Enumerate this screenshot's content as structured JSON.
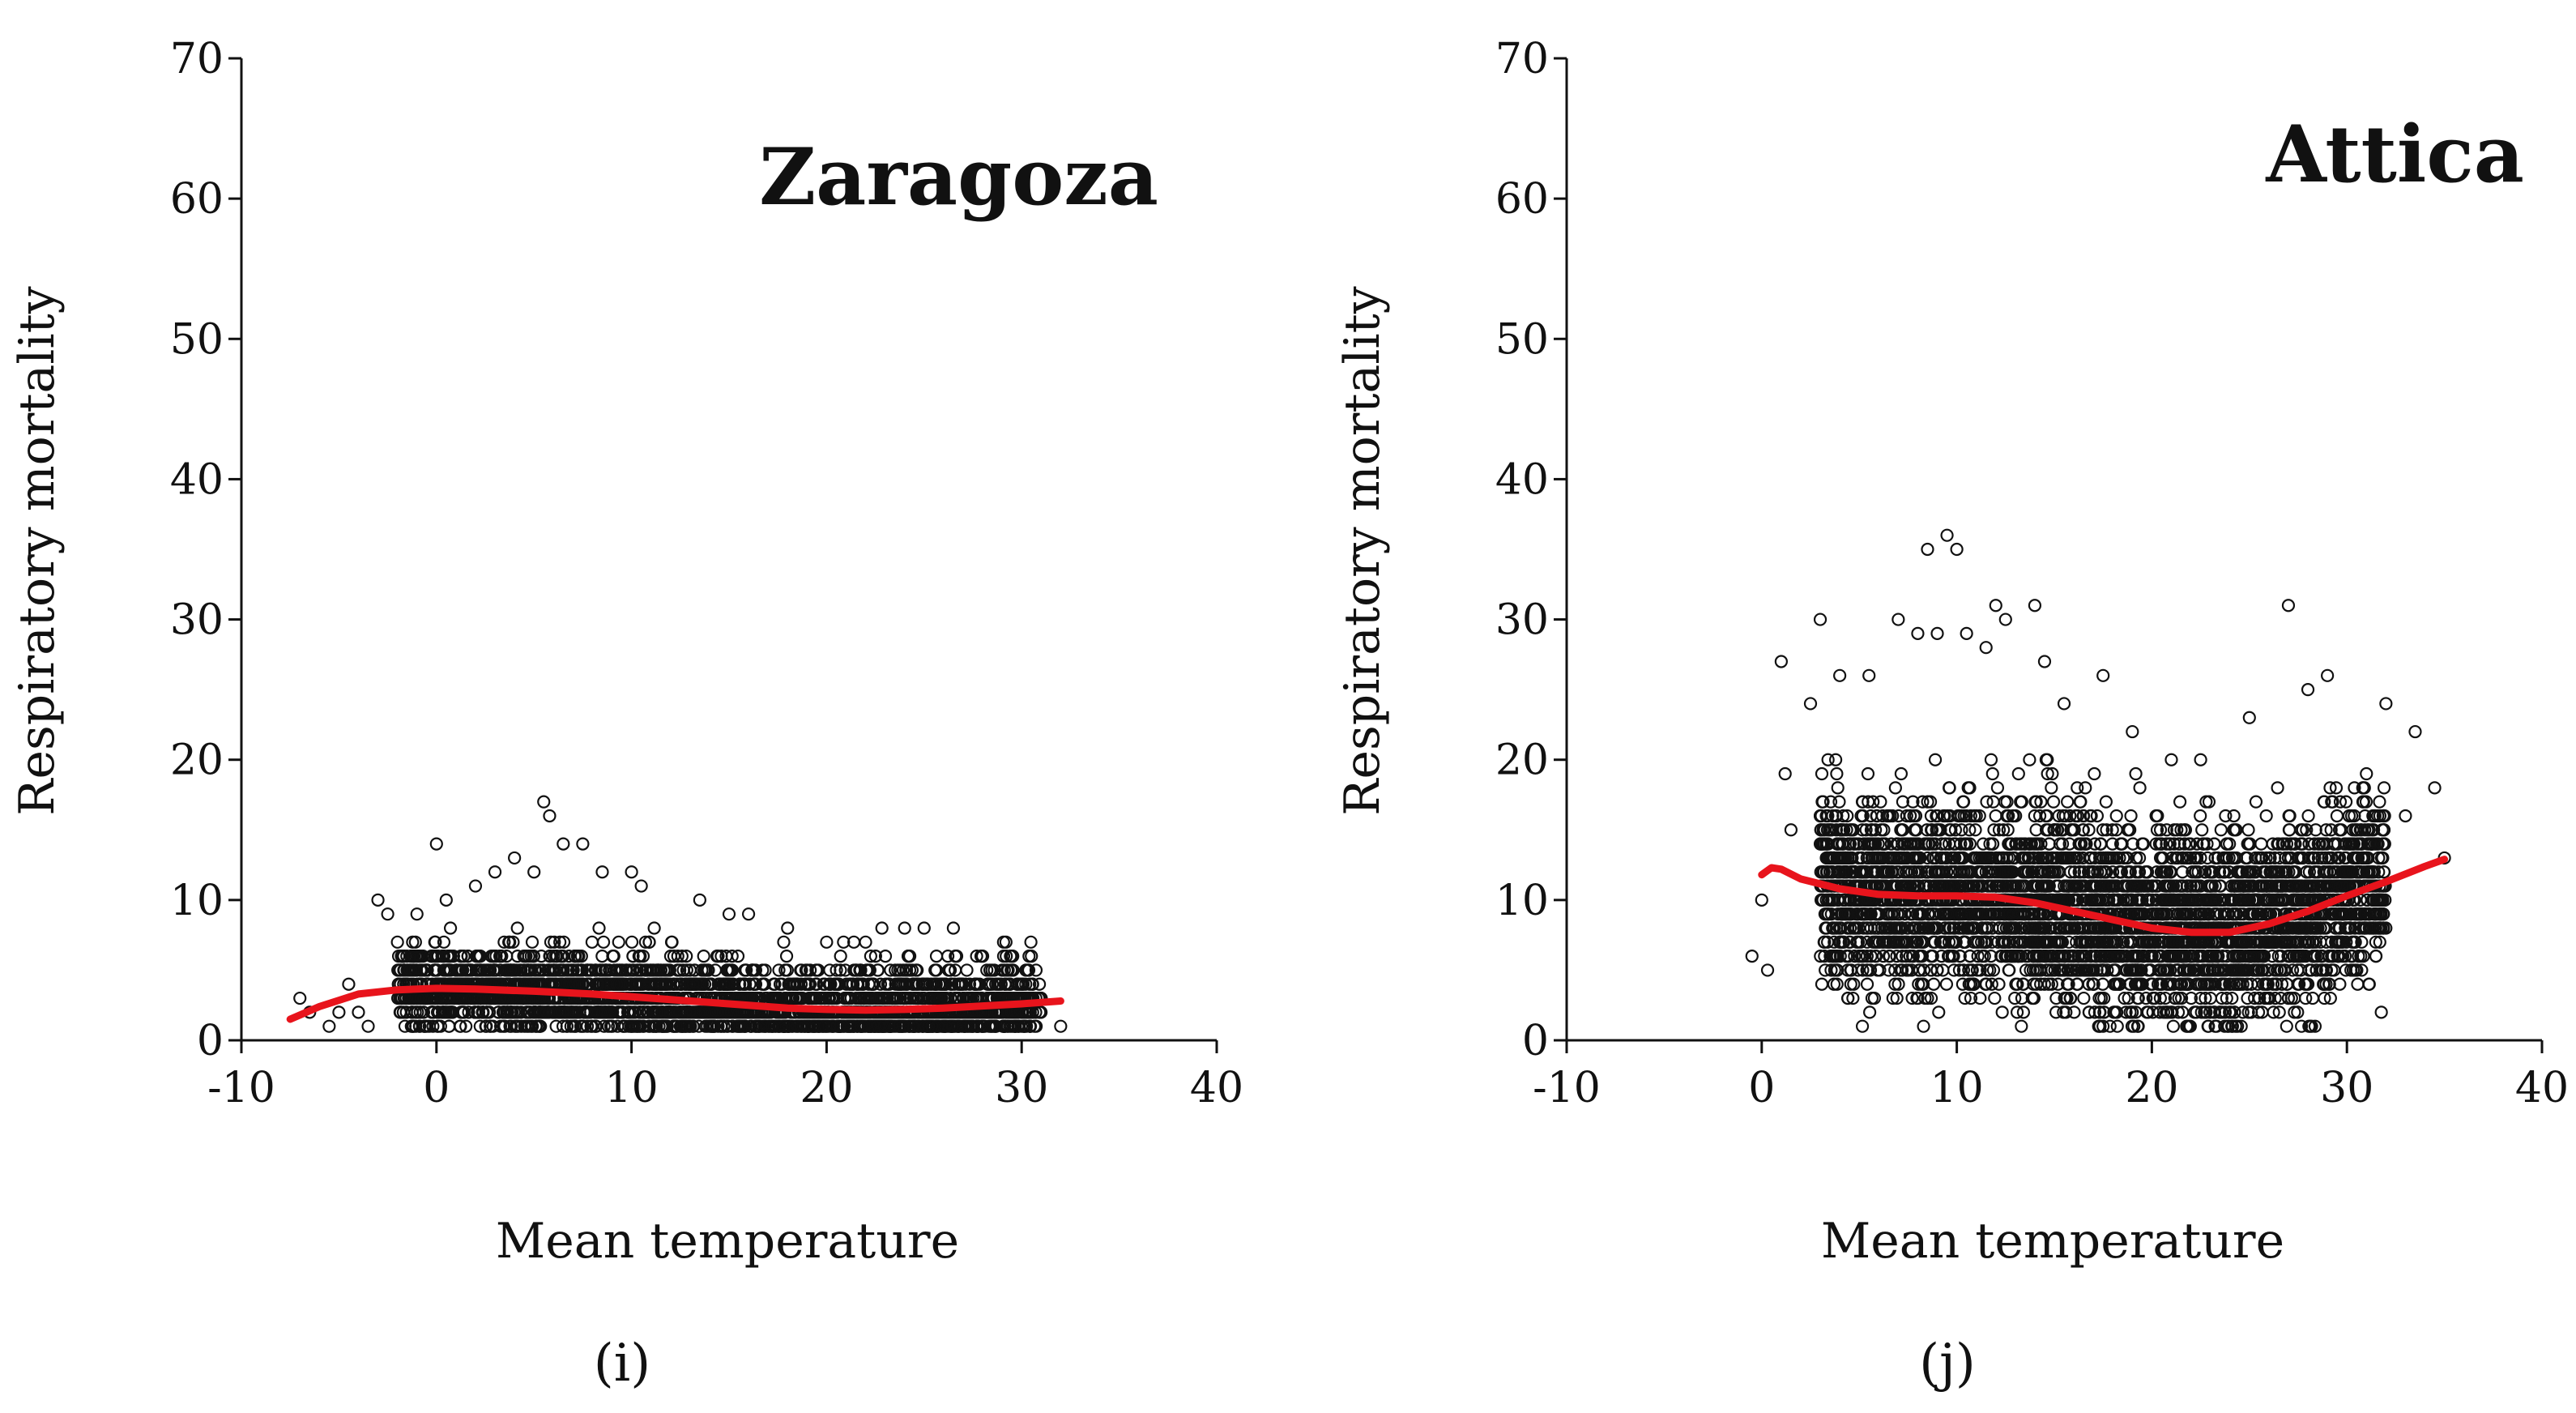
{
  "chart_data": [
    {
      "type": "scatter",
      "panel_label": "(i)",
      "title": "Zaragoza",
      "xlabel": "Mean temperature",
      "ylabel": "Respiratory mortality",
      "xlim": [
        -10,
        40
      ],
      "ylim": [
        0,
        70
      ],
      "x_ticks": [
        -10,
        0,
        10,
        20,
        30,
        40
      ],
      "y_ticks": [
        0,
        10,
        20,
        30,
        40,
        50,
        60,
        70
      ],
      "x_tick_labels": [
        "-10",
        "0",
        "10",
        "20",
        "30",
        "40"
      ],
      "y_tick_labels": [
        "0",
        "10",
        "20",
        "30",
        "40",
        "50",
        "60",
        "70"
      ],
      "title_position": "top-right",
      "scatter_cloud": {
        "x_range": [
          -7.5,
          32
        ],
        "dense_x_range": [
          -2,
          31
        ],
        "dense_y_max": 6,
        "description": "dense daily counts, mostly between 0 and 8 deaths"
      },
      "notable_points": [
        {
          "x": -7,
          "y": 3
        },
        {
          "x": -6.5,
          "y": 2
        },
        {
          "x": -5.5,
          "y": 1
        },
        {
          "x": -5,
          "y": 2
        },
        {
          "x": -4.5,
          "y": 4
        },
        {
          "x": -4,
          "y": 2
        },
        {
          "x": -3.5,
          "y": 1
        },
        {
          "x": -3,
          "y": 10
        },
        {
          "x": -2.5,
          "y": 9
        },
        {
          "x": -2,
          "y": 7
        },
        {
          "x": -1,
          "y": 9
        },
        {
          "x": 0,
          "y": 14
        },
        {
          "x": 0.5,
          "y": 10
        },
        {
          "x": 2,
          "y": 11
        },
        {
          "x": 3,
          "y": 12
        },
        {
          "x": 4,
          "y": 13
        },
        {
          "x": 5,
          "y": 12
        },
        {
          "x": 5.5,
          "y": 17
        },
        {
          "x": 5.8,
          "y": 16
        },
        {
          "x": 6.5,
          "y": 14
        },
        {
          "x": 7.5,
          "y": 14
        },
        {
          "x": 8.5,
          "y": 12
        },
        {
          "x": 10,
          "y": 12
        },
        {
          "x": 10.5,
          "y": 11
        },
        {
          "x": 13.5,
          "y": 10
        },
        {
          "x": 15,
          "y": 9
        },
        {
          "x": 16,
          "y": 9
        },
        {
          "x": 18,
          "y": 8
        },
        {
          "x": 20,
          "y": 7
        },
        {
          "x": 22,
          "y": 7
        },
        {
          "x": 24,
          "y": 8
        },
        {
          "x": 25,
          "y": 8
        },
        {
          "x": 26.5,
          "y": 8
        },
        {
          "x": 28,
          "y": 6
        },
        {
          "x": 29.5,
          "y": 6
        },
        {
          "x": 30.5,
          "y": 6
        },
        {
          "x": 31,
          "y": 3
        },
        {
          "x": 32,
          "y": 1
        }
      ],
      "fit_line": {
        "color": "#e8141c",
        "x": [
          -7.5,
          -6,
          -4,
          -2,
          0,
          2,
          5,
          8,
          10,
          12,
          15,
          18,
          20,
          22,
          24,
          26,
          28,
          30,
          32
        ],
        "y": [
          1.5,
          2.4,
          3.3,
          3.6,
          3.7,
          3.65,
          3.5,
          3.3,
          3.1,
          2.9,
          2.6,
          2.3,
          2.2,
          2.15,
          2.2,
          2.3,
          2.45,
          2.6,
          2.8
        ]
      }
    },
    {
      "type": "scatter",
      "panel_label": "(j)",
      "title": "Attica",
      "xlabel": "Mean temperature",
      "ylabel": "Respiratory mortality",
      "xlim": [
        -10,
        40
      ],
      "ylim": [
        0,
        70
      ],
      "x_ticks": [
        -10,
        0,
        10,
        20,
        30,
        40
      ],
      "y_ticks": [
        0,
        10,
        20,
        30,
        40,
        50,
        60,
        70
      ],
      "x_tick_labels": [
        "-10",
        "0",
        "10",
        "20",
        "30",
        "40"
      ],
      "y_tick_labels": [
        "0",
        "10",
        "20",
        "30",
        "40",
        "50",
        "60",
        "70"
      ],
      "title_position": "top-right",
      "scatter_cloud": {
        "x_range": [
          -0.5,
          35
        ],
        "dense_x_range": [
          3,
          32
        ],
        "dense_y_max": 18,
        "description": "dense daily counts, mostly between 2 and 20 deaths"
      },
      "notable_points": [
        {
          "x": -0.5,
          "y": 6
        },
        {
          "x": 0,
          "y": 10
        },
        {
          "x": 0.3,
          "y": 5
        },
        {
          "x": 1,
          "y": 27
        },
        {
          "x": 1.2,
          "y": 19
        },
        {
          "x": 1.5,
          "y": 15
        },
        {
          "x": 2.5,
          "y": 24
        },
        {
          "x": 3,
          "y": 30
        },
        {
          "x": 4,
          "y": 26
        },
        {
          "x": 5.5,
          "y": 26
        },
        {
          "x": 7,
          "y": 30
        },
        {
          "x": 8,
          "y": 29
        },
        {
          "x": 8.5,
          "y": 35
        },
        {
          "x": 9,
          "y": 29
        },
        {
          "x": 9.5,
          "y": 36
        },
        {
          "x": 10,
          "y": 35
        },
        {
          "x": 10.5,
          "y": 29
        },
        {
          "x": 11.5,
          "y": 28
        },
        {
          "x": 12,
          "y": 31
        },
        {
          "x": 12.5,
          "y": 30
        },
        {
          "x": 14,
          "y": 31
        },
        {
          "x": 14.5,
          "y": 27
        },
        {
          "x": 15.5,
          "y": 24
        },
        {
          "x": 17.5,
          "y": 26
        },
        {
          "x": 19,
          "y": 22
        },
        {
          "x": 21,
          "y": 20
        },
        {
          "x": 22.5,
          "y": 20
        },
        {
          "x": 25,
          "y": 23
        },
        {
          "x": 27,
          "y": 31
        },
        {
          "x": 28,
          "y": 25
        },
        {
          "x": 29,
          "y": 26
        },
        {
          "x": 31,
          "y": 19
        },
        {
          "x": 32,
          "y": 24
        },
        {
          "x": 33,
          "y": 16
        },
        {
          "x": 33.5,
          "y": 22
        },
        {
          "x": 34.5,
          "y": 18
        },
        {
          "x": 35,
          "y": 13
        }
      ],
      "fit_line": {
        "color": "#e8141c",
        "x": [
          0,
          0.5,
          1,
          2,
          4,
          6,
          8,
          10,
          12,
          14,
          16,
          18,
          20,
          22,
          24,
          26,
          28,
          30,
          32,
          34,
          35
        ],
        "y": [
          11.8,
          12.3,
          12.2,
          11.5,
          10.8,
          10.4,
          10.3,
          10.3,
          10.2,
          9.8,
          9.2,
          8.6,
          8.0,
          7.7,
          7.7,
          8.3,
          9.2,
          10.3,
          11.3,
          12.4,
          12.9
        ]
      }
    }
  ]
}
